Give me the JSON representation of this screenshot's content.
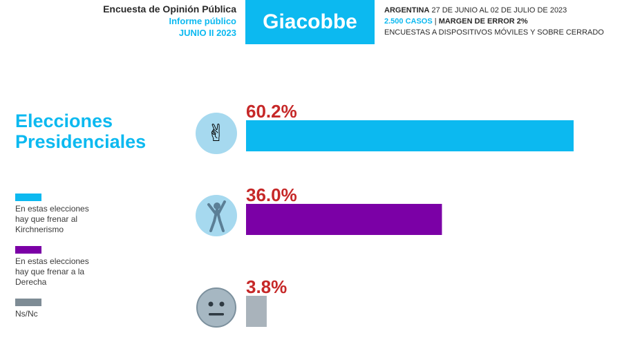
{
  "header": {
    "survey_title": "Encuesta de Opinión Pública",
    "report_type": "Informe público",
    "edition": "JUNIO II 2023",
    "brand": "Giacobbe",
    "country": "ARGENTINA",
    "date_range": " 27 DE JUNIO AL 02 DE JULIO DE 2023",
    "cases": "2.500 CASOS",
    "separator": " | ",
    "margin": "MARGEN DE ERROR 2%",
    "method": "ENCUESTAS A DISPOSITIVOS MÓVILES Y SOBRE CERRADO"
  },
  "colors": {
    "accent": "#0cb9f0",
    "bar_kirchnerismo": "#0cb9f0",
    "bar_derecha": "#7b00a6",
    "bar_nsnc": "#a9b3bb",
    "value_label": "#c62828",
    "legend_nsnc": "#7e8c95",
    "icon_bg": "#a6d9ef"
  },
  "icons": [
    "victory-hand-icon",
    "protest-figure-icon",
    "neutral-face-icon"
  ],
  "chart_data": {
    "type": "bar",
    "orientation": "horizontal",
    "title_lines": [
      "Elecciones",
      "Presidenciales"
    ],
    "categories": [
      "En estas elecciones hay que frenar al Kirchnerismo",
      "En estas elecciones hay que frenar a la Derecha",
      "Ns/Nc"
    ],
    "legend": [
      [
        "En estas elecciones",
        "hay que frenar al",
        "Kirchnerismo"
      ],
      [
        "En estas elecciones",
        "hay que frenar a la",
        "Derecha"
      ],
      [
        "Ns/Nc"
      ]
    ],
    "values": [
      60.2,
      36.0,
      3.8
    ],
    "value_labels": [
      "60.2%",
      "36.0%",
      "3.8%"
    ],
    "xlim": [
      0,
      60.2
    ],
    "grid": false,
    "legend_placement": "left"
  }
}
